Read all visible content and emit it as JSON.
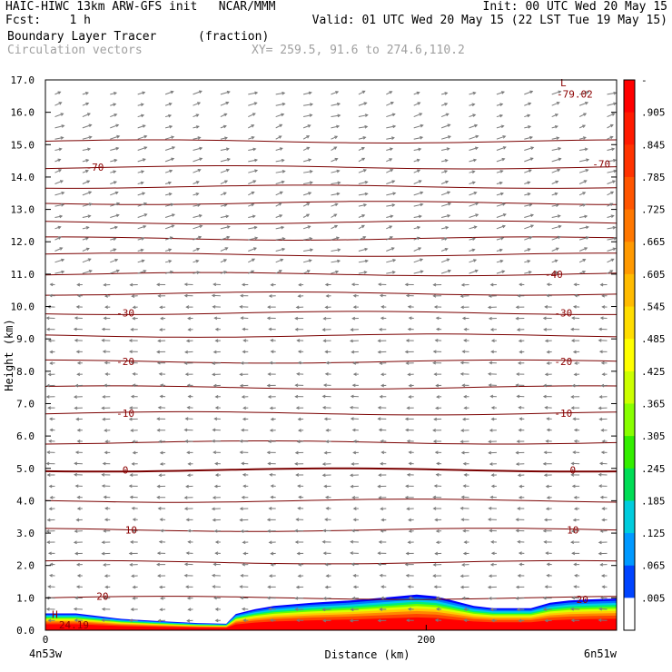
{
  "header": {
    "line1_left": "HAIC-HIWC 13km ARW-GFS init   NCAR/MMM",
    "line1_right": "Init: 00 UTC Wed 20 May 15",
    "line2_left": "Fcst:    1 h",
    "line2_right": "Valid: 01 UTC Wed 20 May 15 (22 LST Tue 19 May 15)",
    "line3_left": "Boundary Layer Tracer",
    "line3_mid": "(fraction)",
    "line4_left": "Circulation vectors",
    "line4_mid": "XY= 259.5, 91.6 to 274.6,110.2"
  },
  "chart_data": {
    "type": "heatmap",
    "xlabel": "Distance (km)",
    "ylabel": "Height (km)",
    "xlim": [
      0,
      300
    ],
    "ylim": [
      0,
      17
    ],
    "x_ticks": [
      0,
      200
    ],
    "x_tick_labels": [
      "0",
      "200"
    ],
    "x_endpoint_labels": [
      "4n53w",
      "6n51w"
    ],
    "y_ticks": [
      0,
      1,
      2,
      3,
      4,
      5,
      6,
      7,
      8,
      9,
      10,
      11,
      12,
      13,
      14,
      15,
      16,
      17
    ],
    "y_tick_labels": [
      "0.0",
      "1.0",
      "2.0",
      "3.0",
      "4.0",
      "5.0",
      "6.0",
      "7.0",
      "8.0",
      "9.0",
      "10.0",
      "11.0",
      "12.0",
      "13.0",
      "14.0",
      "15.0",
      "16.0",
      "17.0"
    ],
    "colorbar": {
      "labels": [
        "-",
        ".905",
        ".845",
        ".785",
        ".725",
        ".665",
        ".605",
        ".545",
        ".485",
        ".425",
        ".365",
        ".305",
        ".245",
        ".185",
        ".125",
        ".065",
        ".005"
      ],
      "colors": [
        "#ff0000",
        "#ff1a00",
        "#ff3300",
        "#ff5500",
        "#ff7700",
        "#ff9900",
        "#ffbb00",
        "#ffdd00",
        "#ffff00",
        "#ccff00",
        "#88ff00",
        "#33ee00",
        "#00dd55",
        "#00ccdd",
        "#0099ff",
        "#0044ff",
        "#ffffff"
      ]
    },
    "tracer_top_km": {
      "x": [
        0,
        16,
        30,
        40,
        60,
        80,
        95,
        100,
        110,
        120,
        140,
        160,
        180,
        195,
        205,
        215,
        225,
        235,
        255,
        265,
        275,
        285,
        300
      ],
      "top": [
        0.52,
        0.52,
        0.42,
        0.35,
        0.28,
        0.22,
        0.2,
        0.5,
        0.65,
        0.75,
        0.85,
        0.92,
        1.02,
        1.1,
        1.05,
        0.9,
        0.75,
        0.68,
        0.68,
        0.85,
        0.92,
        0.95,
        0.98
      ]
    },
    "temperature_contours": {
      "levels": [
        20,
        10,
        0,
        -10,
        -20,
        -30,
        -40,
        -70
      ],
      "labels": [
        "20",
        "10",
        "0",
        "-10",
        "-20",
        "-30",
        "-40",
        "-70"
      ],
      "extremum_label": "L",
      "extremum_value": "-79.02",
      "high_label": "H",
      "high_value": "24.19"
    }
  }
}
